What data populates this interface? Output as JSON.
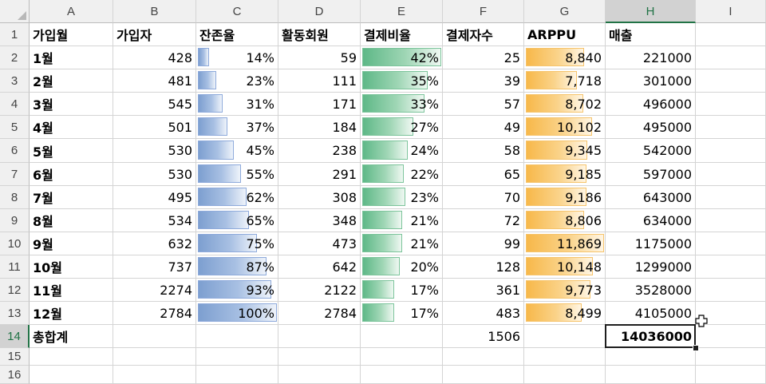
{
  "columns": [
    "A",
    "B",
    "C",
    "D",
    "E",
    "F",
    "G",
    "H",
    "I"
  ],
  "selected_column": "H",
  "selected_row": 14,
  "rows": [
    "1",
    "2",
    "3",
    "4",
    "5",
    "6",
    "7",
    "8",
    "9",
    "10",
    "11",
    "12",
    "13",
    "14",
    "15",
    "16"
  ],
  "headers": [
    "가입월",
    "가입자",
    "잔존율",
    "활동회원",
    "결제비율",
    "결제자수",
    "ARPPU",
    "매출"
  ],
  "table": [
    {
      "month": "1월",
      "subs": "428",
      "retention": "14%",
      "retention_value": 0.14,
      "active": "59",
      "payrate": "42%",
      "payrate_value": 0.42,
      "payers": "25",
      "arppu": "8,840",
      "arppu_value": 8840,
      "revenue": "221000"
    },
    {
      "month": "2월",
      "subs": "481",
      "retention": "23%",
      "retention_value": 0.23,
      "active": "111",
      "payrate": "35%",
      "payrate_value": 0.35,
      "payers": "39",
      "arppu": "7,718",
      "arppu_value": 7718,
      "revenue": "301000"
    },
    {
      "month": "3월",
      "subs": "545",
      "retention": "31%",
      "retention_value": 0.31,
      "active": "171",
      "payrate": "33%",
      "payrate_value": 0.33,
      "payers": "57",
      "arppu": "8,702",
      "arppu_value": 8702,
      "revenue": "496000"
    },
    {
      "month": "4월",
      "subs": "501",
      "retention": "37%",
      "retention_value": 0.37,
      "active": "184",
      "payrate": "27%",
      "payrate_value": 0.27,
      "payers": "49",
      "arppu": "10,102",
      "arppu_value": 10102,
      "revenue": "495000"
    },
    {
      "month": "5월",
      "subs": "530",
      "retention": "45%",
      "retention_value": 0.45,
      "active": "238",
      "payrate": "24%",
      "payrate_value": 0.24,
      "payers": "58",
      "arppu": "9,345",
      "arppu_value": 9345,
      "revenue": "542000"
    },
    {
      "month": "6월",
      "subs": "530",
      "retention": "55%",
      "retention_value": 0.55,
      "active": "291",
      "payrate": "22%",
      "payrate_value": 0.22,
      "payers": "65",
      "arppu": "9,185",
      "arppu_value": 9185,
      "revenue": "597000"
    },
    {
      "month": "7월",
      "subs": "495",
      "retention": "62%",
      "retention_value": 0.62,
      "active": "308",
      "payrate": "23%",
      "payrate_value": 0.23,
      "payers": "70",
      "arppu": "9,186",
      "arppu_value": 9186,
      "revenue": "643000"
    },
    {
      "month": "8월",
      "subs": "534",
      "retention": "65%",
      "retention_value": 0.65,
      "active": "348",
      "payrate": "21%",
      "payrate_value": 0.21,
      "payers": "72",
      "arppu": "8,806",
      "arppu_value": 8806,
      "revenue": "634000"
    },
    {
      "month": "9월",
      "subs": "632",
      "retention": "75%",
      "retention_value": 0.75,
      "active": "473",
      "payrate": "21%",
      "payrate_value": 0.21,
      "payers": "99",
      "arppu": "11,869",
      "arppu_value": 11869,
      "revenue": "1175000"
    },
    {
      "month": "10월",
      "subs": "737",
      "retention": "87%",
      "retention_value": 0.87,
      "active": "642",
      "payrate": "20%",
      "payrate_value": 0.2,
      "payers": "128",
      "arppu": "10,148",
      "arppu_value": 10148,
      "revenue": "1299000"
    },
    {
      "month": "11월",
      "subs": "2274",
      "retention": "93%",
      "retention_value": 0.93,
      "active": "2122",
      "payrate": "17%",
      "payrate_value": 0.17,
      "payers": "361",
      "arppu": "9,773",
      "arppu_value": 9773,
      "revenue": "3528000"
    },
    {
      "month": "12월",
      "subs": "2784",
      "retention": "100%",
      "retention_value": 1.0,
      "active": "2784",
      "payrate": "17%",
      "payrate_value": 0.17,
      "payers": "483",
      "arppu": "8,499",
      "arppu_value": 8499,
      "revenue": "4105000"
    }
  ],
  "totals": {
    "label": "총합계",
    "payers": "1506",
    "revenue": "14036000"
  },
  "databar_colors": {
    "retention": "#7d9fd0",
    "payrate": "#5eb887",
    "arppu": "#f7b84a"
  },
  "cursor_icon": "plus-cross-cursor-icon"
}
